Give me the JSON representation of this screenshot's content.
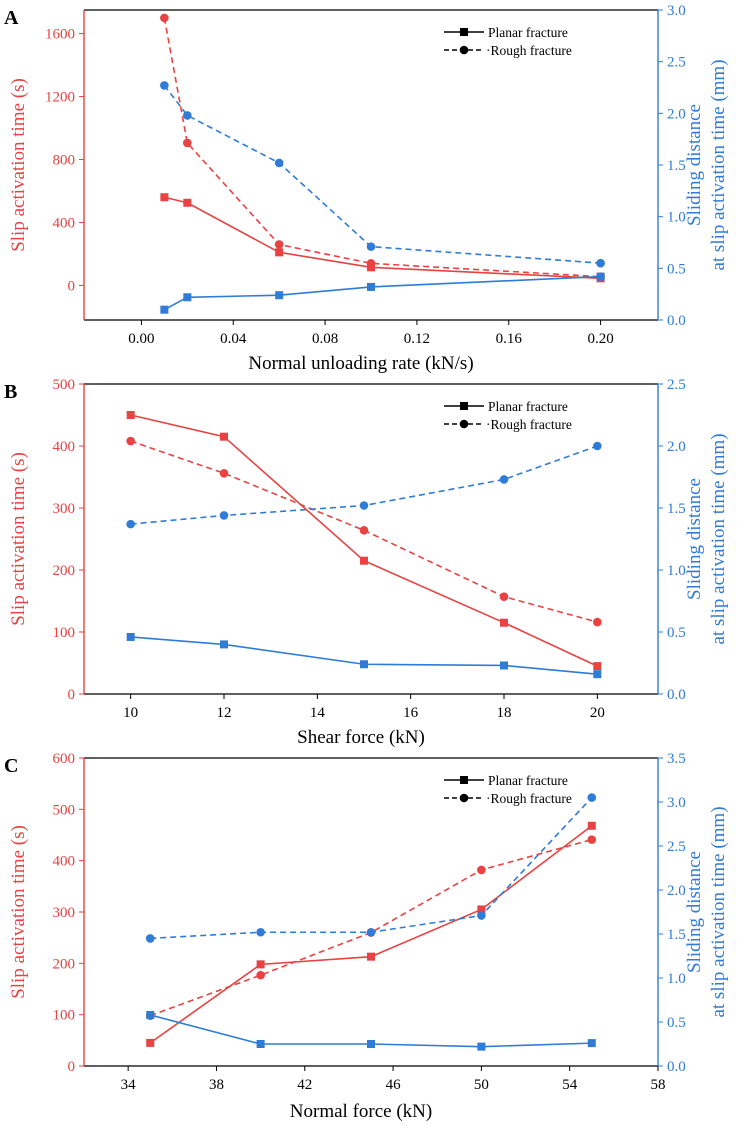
{
  "colors": {
    "left": "#e84242",
    "right": "#2f7bd8",
    "axis": "#000000"
  },
  "chart_data": [
    {
      "type": "line",
      "panel_label": "A",
      "xlabel": "Normal unloading rate (kN/s)",
      "ylabel": "Slip activation time (s)",
      "y2label_line1": "Sliding distance",
      "y2label_line2": "at slip activation time (mm)",
      "xlim": [
        -0.025,
        0.225
      ],
      "ylim": [
        -220,
        1750
      ],
      "y2lim": [
        0,
        3.0
      ],
      "xticks": [
        0.0,
        0.04,
        0.08,
        0.12,
        0.16,
        0.2
      ],
      "xtick_labels": [
        "0.00",
        "0.04",
        "0.08",
        "0.12",
        "0.16",
        "0.20"
      ],
      "yticks": [
        0,
        400,
        800,
        1200,
        1600
      ],
      "ytick_labels": [
        "0",
        "400",
        "800",
        "1200",
        "1600"
      ],
      "y2ticks": [
        0,
        0.5,
        1.0,
        1.5,
        2.0,
        2.5,
        3.0
      ],
      "y2tick_labels": [
        "0.0",
        "0.5",
        "1.0",
        "1.5",
        "2.0",
        "2.5",
        "3.0"
      ],
      "legend": [
        "Planar fracture",
        "Rough fracture"
      ],
      "series": [
        {
          "name": "Planar fracture",
          "axis": "left",
          "marker": "square",
          "dash": false,
          "x": [
            0.01,
            0.02,
            0.06,
            0.1,
            0.2
          ],
          "values": [
            560,
            525,
            210,
            115,
            45
          ]
        },
        {
          "name": "Rough fracture",
          "axis": "left",
          "marker": "circle",
          "dash": true,
          "x": [
            0.01,
            0.02,
            0.06,
            0.1,
            0.2
          ],
          "values": [
            1700,
            905,
            260,
            140,
            55
          ]
        },
        {
          "name": "Planar fracture",
          "axis": "right",
          "marker": "square",
          "dash": false,
          "x": [
            0.01,
            0.02,
            0.06,
            0.1,
            0.2
          ],
          "values": [
            0.1,
            0.22,
            0.24,
            0.32,
            0.42
          ]
        },
        {
          "name": "Rough fracture",
          "axis": "right",
          "marker": "circle",
          "dash": true,
          "x": [
            0.01,
            0.02,
            0.06,
            0.1,
            0.2
          ],
          "values": [
            2.27,
            1.98,
            1.52,
            0.71,
            0.55
          ]
        }
      ]
    },
    {
      "type": "line",
      "panel_label": "B",
      "xlabel": "Shear force (kN)",
      "ylabel": "Slip activation time (s)",
      "y2label_line1": "Sliding distance",
      "y2label_line2": "at slip activation time (mm)",
      "xlim": [
        9,
        21.3
      ],
      "ylim": [
        0,
        500
      ],
      "y2lim": [
        0,
        2.5
      ],
      "xticks": [
        10,
        12,
        14,
        16,
        18,
        20
      ],
      "xtick_labels": [
        "10",
        "12",
        "14",
        "16",
        "18",
        "20"
      ],
      "yticks": [
        0,
        100,
        200,
        300,
        400,
        500
      ],
      "ytick_labels": [
        "0",
        "100",
        "200",
        "300",
        "400",
        "500"
      ],
      "y2ticks": [
        0,
        0.5,
        1.0,
        1.5,
        2.0,
        2.5
      ],
      "y2tick_labels": [
        "0.0",
        "0.5",
        "1.0",
        "1.5",
        "2.0",
        "2.5"
      ],
      "legend": [
        "Planar fracture",
        "Rough fracture"
      ],
      "series": [
        {
          "name": "Planar fracture",
          "axis": "left",
          "marker": "square",
          "dash": false,
          "x": [
            10,
            12,
            15,
            18,
            20
          ],
          "values": [
            450,
            415,
            215,
            115,
            45
          ]
        },
        {
          "name": "Rough fracture",
          "axis": "left",
          "marker": "circle",
          "dash": true,
          "x": [
            10,
            12,
            15,
            18,
            20
          ],
          "values": [
            408,
            356,
            264,
            157,
            116
          ]
        },
        {
          "name": "Planar fracture",
          "axis": "right",
          "marker": "square",
          "dash": false,
          "x": [
            10,
            12,
            15,
            18,
            20
          ],
          "values": [
            0.46,
            0.4,
            0.24,
            0.23,
            0.16
          ]
        },
        {
          "name": "Rough fracture",
          "axis": "right",
          "marker": "circle",
          "dash": true,
          "x": [
            10,
            12,
            15,
            18,
            20
          ],
          "values": [
            1.37,
            1.44,
            1.52,
            1.73,
            2.0
          ]
        }
      ]
    },
    {
      "type": "line",
      "panel_label": "C",
      "xlabel": "Normal force (kN)",
      "ylabel": "Slip activation time (s)",
      "y2label_line1": "Sliding distance",
      "y2label_line2": "at slip activation time (mm)",
      "xlim": [
        32,
        58
      ],
      "ylim": [
        0,
        600
      ],
      "y2lim": [
        0,
        3.5
      ],
      "xticks": [
        34,
        38,
        42,
        46,
        50,
        54,
        58
      ],
      "xtick_labels": [
        "34",
        "38",
        "42",
        "46",
        "50",
        "54",
        "58"
      ],
      "yticks": [
        0,
        100,
        200,
        300,
        400,
        500,
        600
      ],
      "ytick_labels": [
        "0",
        "100",
        "200",
        "300",
        "400",
        "500",
        "600"
      ],
      "y2ticks": [
        0,
        0.5,
        1.0,
        1.5,
        2.0,
        2.5,
        3.0,
        3.5
      ],
      "y2tick_labels": [
        "0.0",
        "0.5",
        "1.0",
        "1.5",
        "2.0",
        "2.5",
        "3.0",
        "3.5"
      ],
      "legend": [
        "Planar fracture",
        "Rough fracture"
      ],
      "series": [
        {
          "name": "Planar fracture",
          "axis": "left",
          "marker": "square",
          "dash": false,
          "x": [
            35,
            40,
            45,
            50,
            55
          ],
          "values": [
            45,
            198,
            213,
            305,
            468
          ]
        },
        {
          "name": "Rough fracture",
          "axis": "left",
          "marker": "circle",
          "dash": true,
          "x": [
            35,
            40,
            45,
            50,
            55
          ],
          "values": [
            98,
            177,
            260,
            382,
            441
          ]
        },
        {
          "name": "Planar fracture",
          "axis": "right",
          "marker": "square",
          "dash": false,
          "x": [
            35,
            40,
            45,
            50,
            55
          ],
          "values": [
            0.58,
            0.25,
            0.25,
            0.22,
            0.26
          ]
        },
        {
          "name": "Rough fracture",
          "axis": "right",
          "marker": "circle",
          "dash": true,
          "x": [
            35,
            40,
            45,
            50,
            55
          ],
          "values": [
            1.45,
            1.52,
            1.52,
            1.71,
            3.05
          ]
        }
      ]
    }
  ]
}
